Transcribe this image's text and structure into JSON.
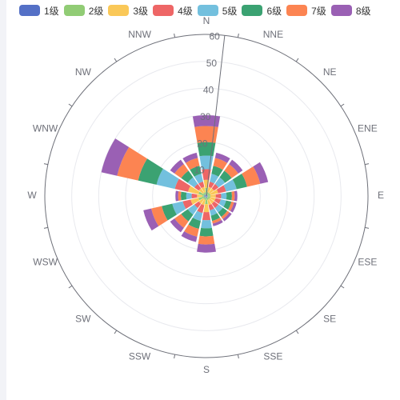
{
  "chart_data": {
    "type": "polar-stacked-bar",
    "r_ticks": [
      0,
      10,
      20,
      30,
      40,
      50,
      60
    ],
    "r_max": 60,
    "categories": [
      "N",
      "NNE",
      "NE",
      "ENE",
      "E",
      "ESE",
      "SE",
      "SSE",
      "S",
      "SSW",
      "SW",
      "WSW",
      "W",
      "WNW",
      "NW",
      "NNW"
    ],
    "series": [
      {
        "name": "1级",
        "color": "#5470c6",
        "values": [
          1,
          0.5,
          0.5,
          0.5,
          0.5,
          0.5,
          0.5,
          0.5,
          1,
          0.5,
          0.5,
          1,
          0.5,
          1,
          0.5,
          0.5
        ]
      },
      {
        "name": "2级",
        "color": "#91cc75",
        "values": [
          2,
          1,
          1,
          1,
          1,
          1,
          1,
          1,
          2,
          1,
          1,
          2,
          1,
          2,
          1,
          1
        ]
      },
      {
        "name": "3级",
        "color": "#fac858",
        "values": [
          3,
          2,
          2,
          3,
          2,
          2,
          2,
          2,
          3,
          2,
          2,
          3,
          2,
          4,
          2,
          2
        ]
      },
      {
        "name": "4级",
        "color": "#ee6666",
        "values": [
          4,
          2,
          2,
          3,
          2,
          2,
          2,
          2,
          3,
          3,
          2,
          3,
          2,
          5,
          2,
          2
        ]
      },
      {
        "name": "5级",
        "color": "#73c0de",
        "values": [
          5,
          3,
          3,
          4,
          2,
          2,
          2,
          2,
          3,
          3,
          3,
          4,
          2,
          7,
          3,
          3
        ]
      },
      {
        "name": "6级",
        "color": "#3ba272",
        "values": [
          5,
          3,
          3,
          4,
          2,
          2,
          2,
          2,
          3,
          3,
          3,
          4,
          2,
          7,
          3,
          3
        ]
      },
      {
        "name": "7级",
        "color": "#fc8452",
        "values": [
          6,
          3,
          3,
          5,
          1,
          1,
          1,
          1,
          3,
          3,
          3,
          4,
          1,
          8,
          3,
          3
        ]
      },
      {
        "name": "8级",
        "color": "#9a60b4",
        "values": [
          4,
          2,
          2,
          3,
          1,
          1,
          1,
          1,
          3,
          2,
          2,
          3,
          1,
          6,
          2,
          2
        ]
      }
    ]
  }
}
